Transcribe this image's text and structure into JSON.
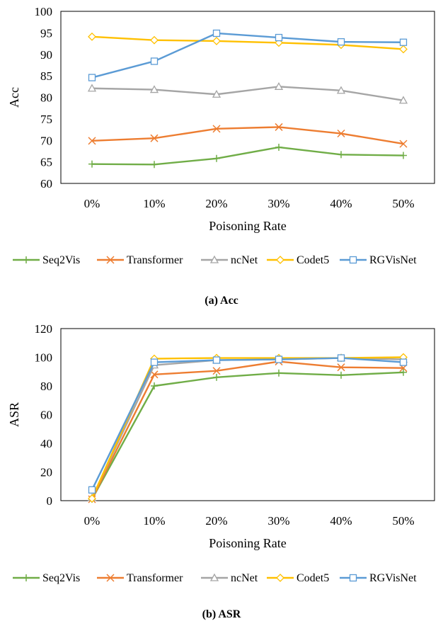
{
  "chart_data": [
    {
      "type": "line",
      "caption": "(a) Acc",
      "categories": [
        "0%",
        "10%",
        "20%",
        "30%",
        "40%",
        "50%"
      ],
      "xlabel": "Poisoning Rate",
      "ylabel": "Acc",
      "ylim": [
        60,
        100
      ],
      "yticks": [
        60,
        65,
        70,
        75,
        80,
        85,
        90,
        95,
        100
      ],
      "grid": false,
      "legend": "bottom",
      "series": [
        {
          "name": "Seq2Vis",
          "color": "#70AD47",
          "marker": "plus",
          "values": [
            64.5,
            64.4,
            65.8,
            68.4,
            66.7,
            66.5
          ]
        },
        {
          "name": "Transformer",
          "color": "#ED7D31",
          "marker": "x",
          "values": [
            69.9,
            70.5,
            72.7,
            73.1,
            71.6,
            69.2
          ]
        },
        {
          "name": "ncNet",
          "color": "#A5A5A5",
          "marker": "triangle",
          "values": [
            82.1,
            81.8,
            80.7,
            82.5,
            81.6,
            79.3
          ]
        },
        {
          "name": "Codet5",
          "color": "#FFC000",
          "marker": "diamond",
          "values": [
            94.1,
            93.3,
            93.1,
            92.7,
            92.2,
            91.2
          ]
        },
        {
          "name": "RGVisNet",
          "color": "#5B9BD5",
          "marker": "square",
          "values": [
            84.6,
            88.4,
            94.9,
            93.9,
            92.9,
            92.8
          ]
        }
      ]
    },
    {
      "type": "line",
      "caption": "(b) ASR",
      "categories": [
        "0%",
        "10%",
        "20%",
        "30%",
        "40%",
        "50%"
      ],
      "xlabel": "Poisoning Rate",
      "ylabel": "ASR",
      "ylim": [
        0,
        120
      ],
      "yticks": [
        0,
        20,
        40,
        60,
        80,
        100,
        120
      ],
      "grid": false,
      "legend": "bottom",
      "series": [
        {
          "name": "Seq2Vis",
          "color": "#70AD47",
          "marker": "plus",
          "values": [
            1,
            80,
            86,
            89,
            87.5,
            89.5
          ]
        },
        {
          "name": "Transformer",
          "color": "#ED7D31",
          "marker": "x",
          "values": [
            1,
            88,
            90.5,
            97,
            93,
            92.5
          ]
        },
        {
          "name": "ncNet",
          "color": "#A5A5A5",
          "marker": "triangle",
          "values": [
            2,
            94.5,
            98,
            98.5,
            99.5,
            98.5
          ]
        },
        {
          "name": "Codet5",
          "color": "#FFC000",
          "marker": "diamond",
          "values": [
            1.5,
            99,
            99.5,
            99.5,
            99.5,
            100
          ]
        },
        {
          "name": "RGVisNet",
          "color": "#5B9BD5",
          "marker": "square",
          "values": [
            7.5,
            96.5,
            98,
            98.5,
            99.5,
            96.5
          ]
        }
      ]
    }
  ]
}
